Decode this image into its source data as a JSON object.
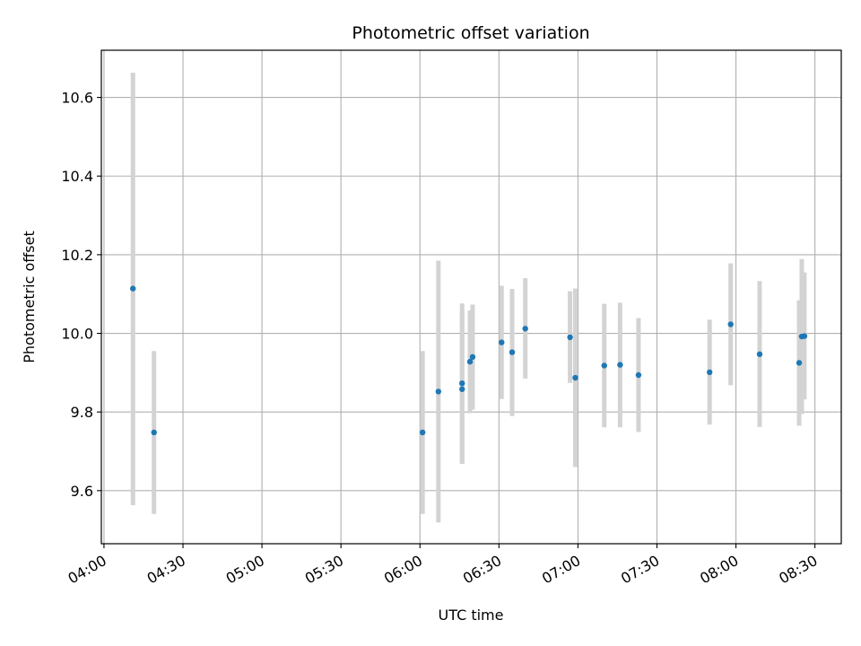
{
  "chart_data": {
    "type": "scatter",
    "title": "Photometric offset variation",
    "xlabel": "UTC time",
    "ylabel": "Photometric offset",
    "x_unit": "time of day (HH:MM)",
    "xlim": [
      "03:59",
      "08:40"
    ],
    "ylim": [
      9.465,
      10.72
    ],
    "x_ticks": [
      "04:00",
      "04:30",
      "05:00",
      "05:30",
      "06:00",
      "06:30",
      "07:00",
      "07:30",
      "08:00",
      "08:30"
    ],
    "y_ticks": [
      9.6,
      9.8,
      10.0,
      10.2,
      10.4,
      10.6
    ],
    "y_tick_labels": [
      "9.6",
      "9.8",
      "10.0",
      "10.2",
      "10.4",
      "10.6"
    ],
    "grid": true,
    "x_tick_rotation_deg": 30,
    "colors": {
      "point": "#1f77b4",
      "errorbar": "#d3d3d3",
      "grid": "#b0b0b0",
      "axes": "#000000"
    },
    "points": [
      {
        "x": "04:11",
        "y": 10.114,
        "ylow": 9.563,
        "yhigh": 10.663
      },
      {
        "x": "04:19",
        "y": 9.748,
        "ylow": 9.541,
        "yhigh": 9.955
      },
      {
        "x": "06:01",
        "y": 9.748,
        "ylow": 9.541,
        "yhigh": 9.955
      },
      {
        "x": "06:07",
        "y": 9.852,
        "ylow": 9.519,
        "yhigh": 10.185
      },
      {
        "x": "06:16",
        "y": 9.858,
        "ylow": 9.668,
        "yhigh": 10.051
      },
      {
        "x": "06:16",
        "y": 9.873,
        "ylow": 9.67,
        "yhigh": 10.076
      },
      {
        "x": "06:19",
        "y": 9.928,
        "ylow": 9.797,
        "yhigh": 10.058
      },
      {
        "x": "06:20",
        "y": 9.94,
        "ylow": 9.806,
        "yhigh": 10.073
      },
      {
        "x": "06:31",
        "y": 9.977,
        "ylow": 9.833,
        "yhigh": 10.121
      },
      {
        "x": "06:35",
        "y": 9.952,
        "ylow": 9.79,
        "yhigh": 10.113
      },
      {
        "x": "06:40",
        "y": 10.012,
        "ylow": 9.885,
        "yhigh": 10.14
      },
      {
        "x": "06:57",
        "y": 9.99,
        "ylow": 9.874,
        "yhigh": 10.107
      },
      {
        "x": "06:59",
        "y": 9.887,
        "ylow": 9.66,
        "yhigh": 10.114
      },
      {
        "x": "07:10",
        "y": 9.918,
        "ylow": 9.761,
        "yhigh": 10.075
      },
      {
        "x": "07:16",
        "y": 9.92,
        "ylow": 9.761,
        "yhigh": 10.078
      },
      {
        "x": "07:23",
        "y": 9.894,
        "ylow": 9.749,
        "yhigh": 10.039
      },
      {
        "x": "07:50",
        "y": 9.901,
        "ylow": 9.768,
        "yhigh": 10.035
      },
      {
        "x": "07:58",
        "y": 10.023,
        "ylow": 9.868,
        "yhigh": 10.178
      },
      {
        "x": "08:09",
        "y": 9.947,
        "ylow": 9.762,
        "yhigh": 10.133
      },
      {
        "x": "08:24",
        "y": 9.925,
        "ylow": 9.765,
        "yhigh": 10.084
      },
      {
        "x": "08:25",
        "y": 9.992,
        "ylow": 9.795,
        "yhigh": 10.189
      },
      {
        "x": "08:26",
        "y": 9.993,
        "ylow": 9.832,
        "yhigh": 10.155
      }
    ]
  }
}
